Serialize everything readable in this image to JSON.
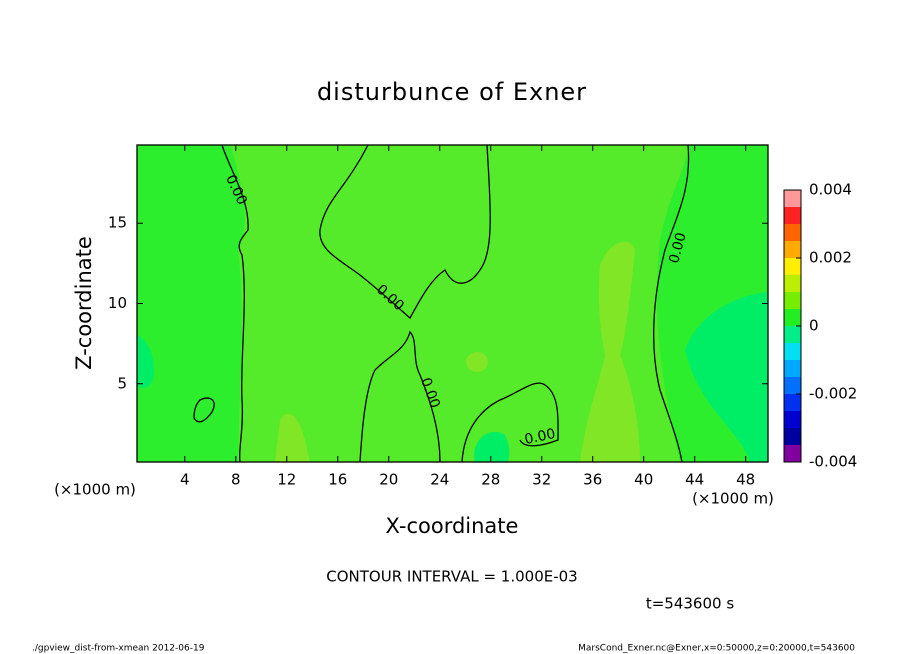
{
  "chart_data": {
    "type": "contour",
    "title": "disturbunce of Exner",
    "x_label": "X-coordinate",
    "y_label": "Z-coordinate",
    "x_unit": "(×1000 m)",
    "y_unit": "(×1000 m)",
    "xlim": [
      0.25,
      49.75
    ],
    "ylim": [
      0.125,
      19.875
    ],
    "xticks": [
      4,
      8,
      12,
      16,
      20,
      24,
      28,
      32,
      36,
      40,
      44,
      48
    ],
    "yticks": [
      5,
      10,
      15
    ],
    "colorbar": {
      "lim": [
        -0.004,
        0.004
      ],
      "ticks": [
        -0.004,
        -0.002,
        0,
        0.002,
        0.004
      ],
      "levels": [
        -0.004,
        -0.0035,
        -0.003,
        -0.0025,
        -0.002,
        -0.0015,
        -0.001,
        -0.0005,
        0,
        0.0005,
        0.001,
        0.0015,
        0.002,
        0.0025,
        0.003,
        0.0035
      ],
      "colors": [
        "#8000a0",
        "#0000a0",
        "#0000d0",
        "#0030f0",
        "#0070ff",
        "#00a8ff",
        "#00e0f0",
        "#00ee88",
        "#22ee22",
        "#77ee00",
        "#bbee00",
        "#ffee00",
        "#ffaa00",
        "#ff6600",
        "#ff2222",
        "#ff9999"
      ]
    },
    "contour_labels": [
      "0.00",
      "0.00",
      "0.00",
      "0.00",
      "0.00"
    ],
    "note": "CONTOUR INTERVAL = 1.000E-03",
    "time": "t=543600 s",
    "footer_left": "./gpview_dist-from-xmean  2012-06-19",
    "footer_right": "MarsCond_Exner.nc@Exner,x=0:50000,z=0:20000,t=543600"
  }
}
